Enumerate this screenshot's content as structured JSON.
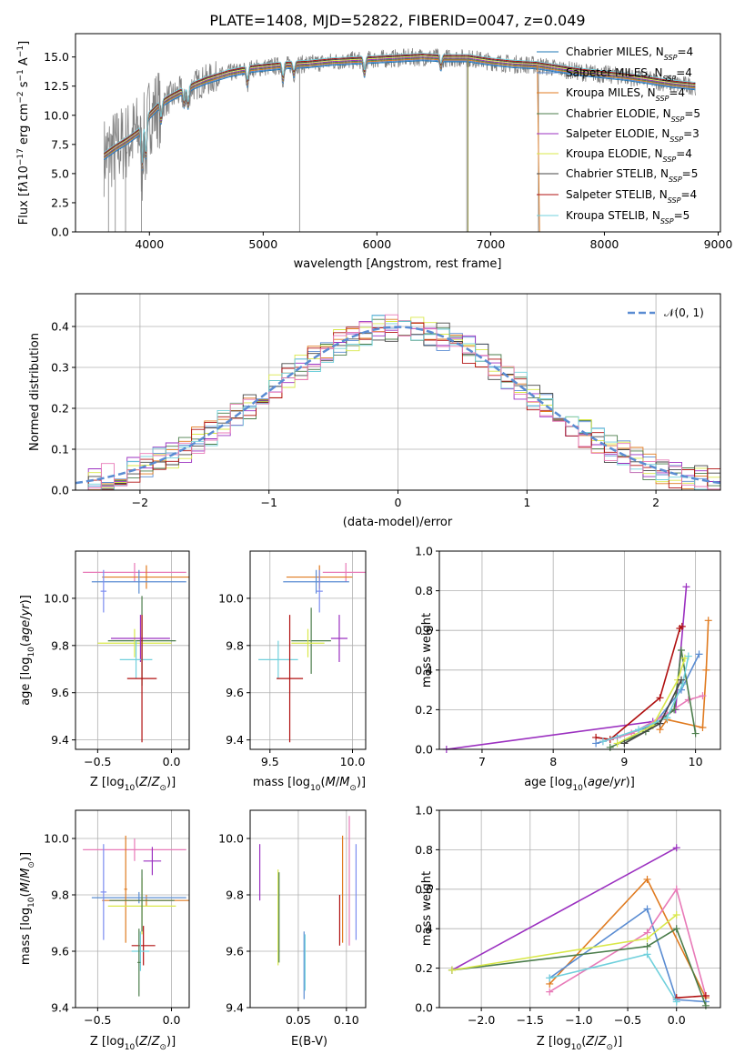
{
  "chart_data": [
    {
      "type": "line",
      "title": "PLATE=1408, MJD=52822, FIBERID=0047, z=0.049",
      "xlabel": "wavelength [Angstrom, rest frame]",
      "ylabel": "Flux [f_λ10^−17 erg cm^−2 s^−1 A^−1]",
      "xlim": [
        3350,
        9020
      ],
      "ylim": [
        0,
        17
      ],
      "xticks": [
        4000,
        5000,
        6000,
        7000,
        8000,
        9000
      ],
      "yticks": [
        0.0,
        2.5,
        5.0,
        7.5,
        10.0,
        12.5,
        15.0
      ],
      "grid": false,
      "legend_position": "upper-right",
      "data_color": "#808080",
      "legend": [
        {
          "name": "Chabrier MILES, N_SSP=4",
          "color": "#1f77b4"
        },
        {
          "name": "Salpeter MILES, N_SSP=4",
          "color": "#5a8cd2"
        },
        {
          "name": "Kroupa MILES, N_SSP=4",
          "color": "#e07b20"
        },
        {
          "name": "Chabrier ELODIE, N_SSP=5",
          "color": "#4b7d4b"
        },
        {
          "name": "Salpeter ELODIE, N_SSP=3",
          "color": "#9b30c0"
        },
        {
          "name": "Kroupa ELODIE, N_SSP=4",
          "color": "#d9e84a"
        },
        {
          "name": "Chabrier STELIB, N_SSP=5",
          "color": "#444444"
        },
        {
          "name": "Salpeter STELIB, N_SSP=4",
          "color": "#b01010"
        },
        {
          "name": "Kroupa STELIB, N_SSP=5",
          "color": "#70d0dc"
        }
      ],
      "continuum": {
        "x": [
          3600,
          3700,
          3800,
          3900,
          4000,
          4100,
          4200,
          4300,
          4400,
          4500,
          4600,
          4700,
          4800,
          4900,
          5000,
          5200,
          5400,
          5600,
          5800,
          6000,
          6200,
          6400,
          6600,
          6800,
          7000,
          7200,
          7400,
          7600,
          7800,
          8000,
          8200,
          8400,
          8600,
          8800
        ],
        "y": [
          6.5,
          7.2,
          7.8,
          8.5,
          10.0,
          11.0,
          11.6,
          12.1,
          12.6,
          13.0,
          13.3,
          13.6,
          13.8,
          14.0,
          14.1,
          14.3,
          14.4,
          14.6,
          14.7,
          14.8,
          14.9,
          15.0,
          14.9,
          14.9,
          14.6,
          14.4,
          14.3,
          14.0,
          13.7,
          13.5,
          13.3,
          13.0,
          12.7,
          12.5
        ]
      }
    },
    {
      "type": "line",
      "xlabel": "(data-model)/error",
      "ylabel": "Normed distribution",
      "xlim": [
        -2.5,
        2.5
      ],
      "ylim": [
        0,
        0.48
      ],
      "xticks": [
        -2,
        -1,
        0,
        1,
        2
      ],
      "yticks": [
        0.0,
        0.1,
        0.2,
        0.3,
        0.4
      ],
      "grid": true,
      "legend_position": "upper-right",
      "reference_curve": {
        "name": "𝒩(0, 1)",
        "function": "standard normal pdf",
        "color": "#5a8cd2"
      },
      "histogram_colors": [
        "#5a8cd2",
        "#e07b20",
        "#4b7d4b",
        "#9b30c0",
        "#d9e84a",
        "#444444",
        "#b01010",
        "#70d0dc",
        "#e87ab8"
      ]
    },
    {
      "type": "scatter",
      "xlabel": "Z [log10(Z/Z⊙)]",
      "ylabel": "age  [log10(age/yr)]",
      "xlim": [
        -0.65,
        0.12
      ],
      "ylim": [
        9.36,
        10.2
      ],
      "xticks": [
        -0.5,
        0.0
      ],
      "yticks": [
        9.4,
        9.6,
        9.8,
        10.0
      ],
      "grid": true,
      "points": [
        {
          "x": -0.25,
          "y": 10.11,
          "xerr": 0.35,
          "yerr": 0.04,
          "color": "#e87ab8"
        },
        {
          "x": -0.17,
          "y": 10.09,
          "xerr": 0.3,
          "yerr": 0.05,
          "color": "#e07b20"
        },
        {
          "x": -0.22,
          "y": 10.07,
          "xerr": 0.32,
          "yerr": 0.05,
          "color": "#5a8cd2"
        },
        {
          "x": -0.46,
          "y": 10.03,
          "xerr": 0.02,
          "yerr": 0.09,
          "color": "#7b8cf0"
        },
        {
          "x": -0.2,
          "y": 9.82,
          "xerr": 0.23,
          "yerr": 0.19,
          "color": "#4b7d4b"
        },
        {
          "x": -0.25,
          "y": 9.81,
          "xerr": 0.25,
          "yerr": 0.06,
          "color": "#d9e84a"
        },
        {
          "x": -0.21,
          "y": 9.83,
          "xerr": 0.2,
          "yerr": 0.1,
          "color": "#9b30c0"
        },
        {
          "x": -0.24,
          "y": 9.74,
          "xerr": 0.11,
          "yerr": 0.08,
          "color": "#70d0dc"
        },
        {
          "x": -0.2,
          "y": 9.66,
          "xerr": 0.1,
          "yerr": 0.27,
          "color": "#b01010"
        }
      ]
    },
    {
      "type": "scatter",
      "xlabel": "mass [log10(M/M⊙)]",
      "xlim": [
        9.38,
        10.08
      ],
      "ylim": [
        9.36,
        10.2
      ],
      "xticks": [
        9.5,
        10.0
      ],
      "yticks": [
        9.4,
        9.6,
        9.8,
        10.0
      ],
      "grid": true,
      "points": [
        {
          "x": 9.96,
          "y": 10.11,
          "xerr": 0.14,
          "yerr": 0.04,
          "color": "#e87ab8"
        },
        {
          "x": 9.8,
          "y": 10.09,
          "xerr": 0.2,
          "yerr": 0.05,
          "color": "#e07b20"
        },
        {
          "x": 9.78,
          "y": 10.07,
          "xerr": 0.2,
          "yerr": 0.05,
          "color": "#5a8cd2"
        },
        {
          "x": 9.8,
          "y": 10.03,
          "xerr": 0.02,
          "yerr": 0.09,
          "color": "#7b8cf0"
        },
        {
          "x": 9.75,
          "y": 9.82,
          "xerr": 0.12,
          "yerr": 0.14,
          "color": "#4b7d4b"
        },
        {
          "x": 9.73,
          "y": 9.81,
          "xerr": 0.1,
          "yerr": 0.06,
          "color": "#d9e84a"
        },
        {
          "x": 9.92,
          "y": 9.83,
          "xerr": 0.05,
          "yerr": 0.1,
          "color": "#9b30c0"
        },
        {
          "x": 9.55,
          "y": 9.74,
          "xerr": 0.12,
          "yerr": 0.08,
          "color": "#70d0dc"
        },
        {
          "x": 9.62,
          "y": 9.66,
          "xerr": 0.08,
          "yerr": 0.27,
          "color": "#b01010"
        }
      ]
    },
    {
      "type": "line",
      "xlabel": "age  [log10(age/yr)]",
      "ylabel": "mass weight",
      "xlim": [
        6.4,
        10.35
      ],
      "ylim": [
        0,
        1.0
      ],
      "xticks": [
        7,
        8,
        9,
        10
      ],
      "yticks": [
        0.0,
        0.2,
        0.4,
        0.6,
        0.8,
        1.0
      ],
      "grid": true,
      "series": [
        {
          "color": "#9b30c0",
          "x": [
            6.5,
            9.4,
            9.72,
            9.87
          ],
          "y": [
            0.0,
            0.14,
            0.2,
            0.82
          ]
        },
        {
          "color": "#b01010",
          "x": [
            8.6,
            8.8,
            9.5,
            9.78,
            9.81
          ],
          "y": [
            0.06,
            0.05,
            0.26,
            0.61,
            0.62
          ]
        },
        {
          "color": "#e07b20",
          "x": [
            9.5,
            9.6,
            10.1,
            10.15,
            10.18
          ],
          "y": [
            0.1,
            0.15,
            0.11,
            0.4,
            0.65
          ]
        },
        {
          "color": "#5a8cd2",
          "x": [
            8.6,
            8.9,
            9.4,
            9.8,
            10.05
          ],
          "y": [
            0.03,
            0.06,
            0.12,
            0.3,
            0.48
          ]
        },
        {
          "color": "#e87ab8",
          "x": [
            8.7,
            9.1,
            9.6,
            9.9,
            10.1
          ],
          "y": [
            0.04,
            0.08,
            0.18,
            0.25,
            0.27
          ]
        },
        {
          "color": "#4b7d4b",
          "x": [
            8.8,
            9.3,
            9.7,
            9.8,
            10.0
          ],
          "y": [
            0.01,
            0.09,
            0.2,
            0.5,
            0.08
          ]
        },
        {
          "color": "#d9e84a",
          "x": [
            8.9,
            9.4,
            9.75,
            9.85
          ],
          "y": [
            0.03,
            0.12,
            0.35,
            0.46
          ]
        },
        {
          "color": "#70d0dc",
          "x": [
            8.7,
            9.2,
            9.6,
            9.82,
            9.9
          ],
          "y": [
            0.04,
            0.1,
            0.16,
            0.33,
            0.47
          ]
        },
        {
          "color": "#444444",
          "x": [
            9.0,
            9.5,
            9.8
          ],
          "y": [
            0.03,
            0.13,
            0.35
          ]
        }
      ]
    },
    {
      "type": "scatter",
      "xlabel": "Z [log10(Z/Z⊙)]",
      "ylabel": "mass [log10(M/M⊙)]",
      "xlim": [
        -0.65,
        0.12
      ],
      "ylim": [
        9.4,
        10.1
      ],
      "xticks": [
        -0.5,
        0.0
      ],
      "yticks": [
        9.4,
        9.6,
        9.8,
        10.0
      ],
      "grid": true,
      "points": [
        {
          "x": -0.25,
          "y": 9.96,
          "xerr": 0.35,
          "yerr": 0.04,
          "color": "#e87ab8"
        },
        {
          "x": -0.17,
          "y": 9.78,
          "xerr": 0.3,
          "yerr": 0.02,
          "color": "#e07b20"
        },
        {
          "x": -0.22,
          "y": 9.79,
          "xerr": 0.32,
          "yerr": 0.02,
          "color": "#5a8cd2"
        },
        {
          "x": -0.46,
          "y": 9.81,
          "xerr": 0.02,
          "yerr": 0.17,
          "color": "#7b8cf0"
        },
        {
          "x": -0.31,
          "y": 9.82,
          "xerr": 0.01,
          "yerr": 0.19,
          "color": "#e07b20"
        },
        {
          "x": -0.13,
          "y": 9.92,
          "xerr": 0.06,
          "yerr": 0.05,
          "color": "#9b30c0"
        },
        {
          "x": -0.2,
          "y": 9.76,
          "xerr": 0.23,
          "yerr": 0.1,
          "color": "#d9e84a"
        },
        {
          "x": -0.2,
          "y": 9.78,
          "xerr": 0.22,
          "yerr": 0.11,
          "color": "#4b7d4b"
        },
        {
          "x": -0.19,
          "y": 9.62,
          "xerr": 0.08,
          "yerr": 0.07,
          "color": "#b01010"
        },
        {
          "x": -0.21,
          "y": 9.6,
          "xerr": 0.06,
          "yerr": 0.07,
          "color": "#70d0dc"
        },
        {
          "x": -0.22,
          "y": 9.56,
          "xerr": 0.01,
          "yerr": 0.12,
          "color": "#4b7d4b"
        }
      ]
    },
    {
      "type": "scatter",
      "xlabel": "E(B-V)",
      "xlim": [
        0.0,
        0.12
      ],
      "ylim": [
        9.4,
        10.1
      ],
      "xticks": [
        0.05,
        0.1
      ],
      "yticks": [
        9.4,
        9.6,
        9.8,
        10.0
      ],
      "grid": true,
      "points": [
        {
          "x": 0.01,
          "y": 9.88,
          "yerr": 0.1,
          "color": "#9b30c0"
        },
        {
          "x": 0.029,
          "y": 9.72,
          "yerr": 0.17,
          "color": "#d9e84a"
        },
        {
          "x": 0.03,
          "y": 9.72,
          "yerr": 0.16,
          "color": "#4b7d4b"
        },
        {
          "x": 0.056,
          "y": 9.55,
          "yerr": 0.12,
          "color": "#5a8cd2"
        },
        {
          "x": 0.057,
          "y": 9.56,
          "yerr": 0.1,
          "color": "#70d0dc"
        },
        {
          "x": 0.093,
          "y": 9.71,
          "yerr": 0.09,
          "color": "#b01010"
        },
        {
          "x": 0.096,
          "y": 9.82,
          "yerr": 0.19,
          "color": "#e07b20"
        },
        {
          "x": 0.103,
          "y": 9.85,
          "yerr": 0.23,
          "color": "#e87ab8"
        },
        {
          "x": 0.11,
          "y": 9.81,
          "yerr": 0.17,
          "color": "#7b8cf0"
        }
      ]
    },
    {
      "type": "line",
      "xlabel": "Z [log10(Z/Z⊙)]",
      "ylabel": "mass weight",
      "xlim": [
        -2.43,
        0.45
      ],
      "ylim": [
        0,
        1.0
      ],
      "xticks": [
        -2.0,
        -1.5,
        -1.0,
        -0.5,
        0.0
      ],
      "yticks": [
        0.0,
        0.2,
        0.4,
        0.6,
        0.8,
        1.0
      ],
      "grid": true,
      "series": [
        {
          "color": "#9b30c0",
          "x": [
            -2.3,
            0.0
          ],
          "y": [
            0.19,
            0.81
          ]
        },
        {
          "color": "#e07b20",
          "x": [
            -1.3,
            -0.3,
            0.3
          ],
          "y": [
            0.12,
            0.65,
            0.05
          ]
        },
        {
          "color": "#5a8cd2",
          "x": [
            -1.3,
            -0.3,
            0.0,
            0.3
          ],
          "y": [
            0.15,
            0.5,
            0.04,
            0.03
          ]
        },
        {
          "color": "#e87ab8",
          "x": [
            -1.3,
            -0.3,
            0.0,
            0.3
          ],
          "y": [
            0.08,
            0.38,
            0.6,
            0.06
          ]
        },
        {
          "color": "#b01010",
          "x": [
            0.0,
            0.3
          ],
          "y": [
            0.05,
            0.06
          ]
        },
        {
          "color": "#4b7d4b",
          "x": [
            -2.3,
            -0.3,
            0.0,
            0.3
          ],
          "y": [
            0.19,
            0.31,
            0.4,
            0.01
          ]
        },
        {
          "color": "#d9e84a",
          "x": [
            -2.3,
            -0.3,
            0.0
          ],
          "y": [
            0.19,
            0.35,
            0.47
          ]
        },
        {
          "color": "#70d0dc",
          "x": [
            -1.3,
            -0.3,
            0.0
          ],
          "y": [
            0.15,
            0.27,
            0.03
          ]
        }
      ]
    }
  ]
}
